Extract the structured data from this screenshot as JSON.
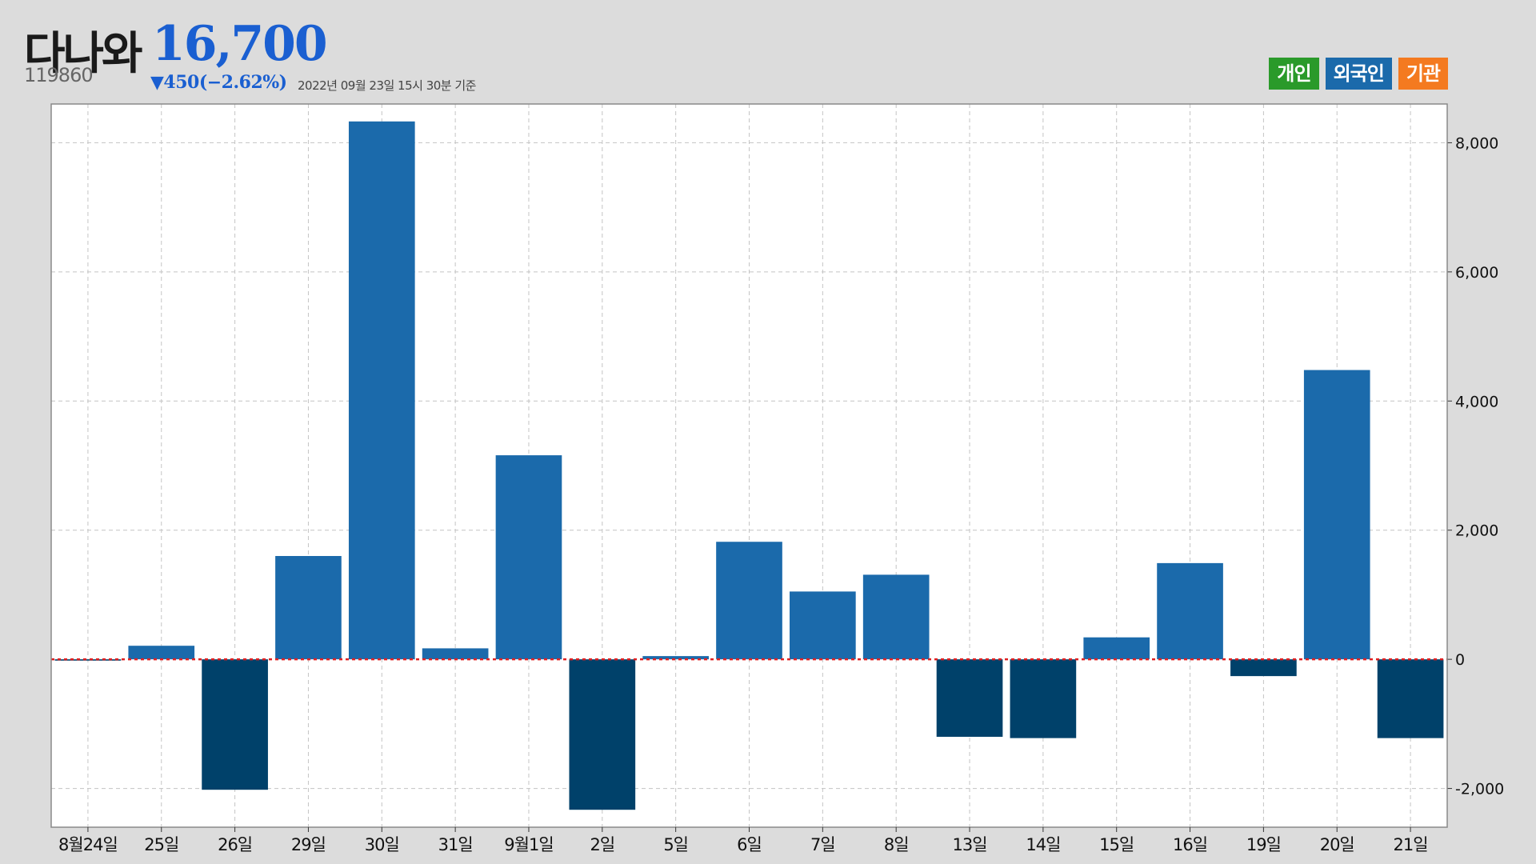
{
  "header": {
    "name": "다나와",
    "price": "16,700",
    "code": "119860",
    "change": "▼450(−2.62%)",
    "as_of": "2022년 09월 23일 15시 30분 기준"
  },
  "legend": [
    {
      "label": "개인",
      "color": "#2a9a2a"
    },
    {
      "label": "외국인",
      "color": "#1b6aab"
    },
    {
      "label": "기관",
      "color": "#f47a20"
    }
  ],
  "colors": {
    "positive_bar": "#1b6aab",
    "negative_bar": "#00416a",
    "zero_line": "#e02020",
    "plot_bg": "#ffffff",
    "grid": "#c4c4c4"
  },
  "chart_data": {
    "type": "bar",
    "series": [
      {
        "name": "외국인",
        "values": [
          -20,
          210,
          -2020,
          1600,
          8330,
          170,
          3160,
          -2330,
          50,
          1820,
          1050,
          1310,
          -1200,
          -1220,
          340,
          1490,
          -260,
          4480,
          -1220
        ]
      }
    ],
    "categories": [
      "8월24일",
      "25일",
      "26일",
      "29일",
      "30일",
      "31일",
      "9월1일",
      "2일",
      "5일",
      "6일",
      "7일",
      "8일",
      "13일",
      "14일",
      "15일",
      "16일",
      "19일",
      "20일",
      "21일"
    ],
    "y_ticks": [
      -2000,
      0,
      2000,
      4000,
      6000,
      8000
    ],
    "y_tick_labels": [
      "-2,000",
      "0",
      "2,000",
      "4,000",
      "6,000",
      "8,000"
    ],
    "ylim": [
      -2600,
      8600
    ],
    "y_axis_position": "right",
    "grid": true
  }
}
